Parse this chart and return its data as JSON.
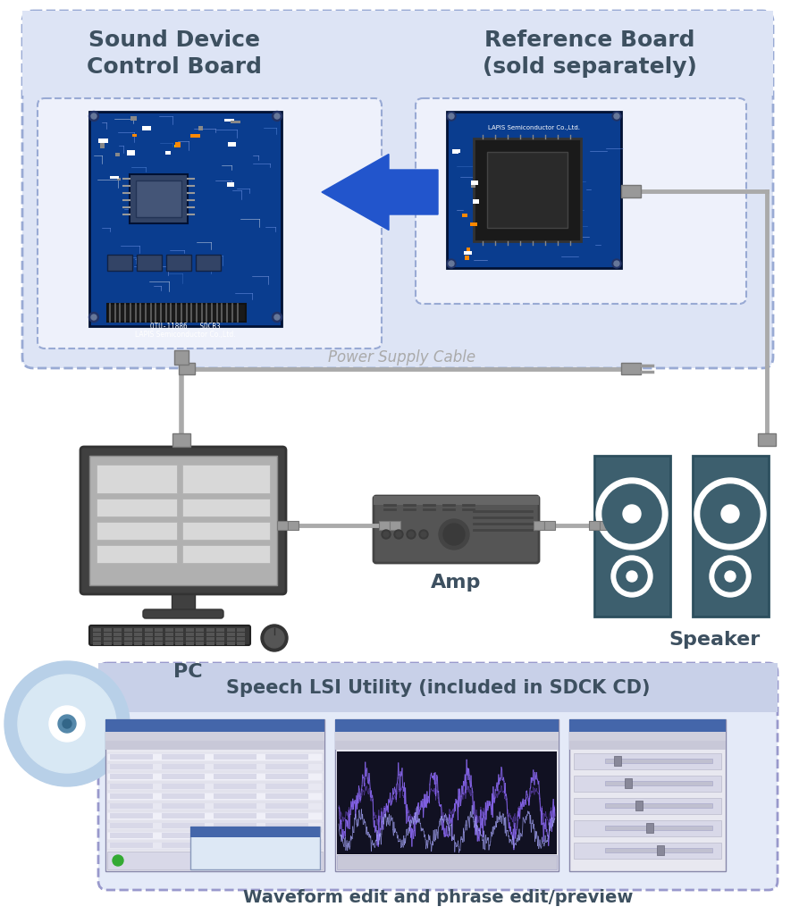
{
  "bg_color": "#ffffff",
  "top_box_color": "#dde4f5",
  "top_box_border": "#99aad4",
  "sub_box_color": "#eef1fb",
  "label_title1": "Sound Device\nControl Board",
  "label_title2": "Reference Board\n(sold separately)",
  "label_pc": "PC",
  "label_amp": "Amp",
  "label_speaker": "Speaker",
  "label_power": "Power Supply Cable",
  "label_utility": "Speech LSI Utility (included in SDCK CD)",
  "label_waveform": "Waveform edit and phrase edit/preview",
  "arrow_color": "#2255cc",
  "cable_color": "#aaaaaa",
  "pc_dark": "#444444",
  "pc_screen_bg": "#bbbbbb",
  "pc_screen_content": "#cccccc",
  "amp_dark": "#555555",
  "amp_mid": "#666666",
  "speaker_color": "#3d5f6e",
  "title_color": "#3d5060",
  "bottom_box_color": "#e4eaf8",
  "bottom_box_border": "#9999cc",
  "header_band_color": "#c8d0e8",
  "cd_color": "#b8d0e8",
  "cd_light": "#d8e8f4",
  "waveform_color": "#7755ee"
}
